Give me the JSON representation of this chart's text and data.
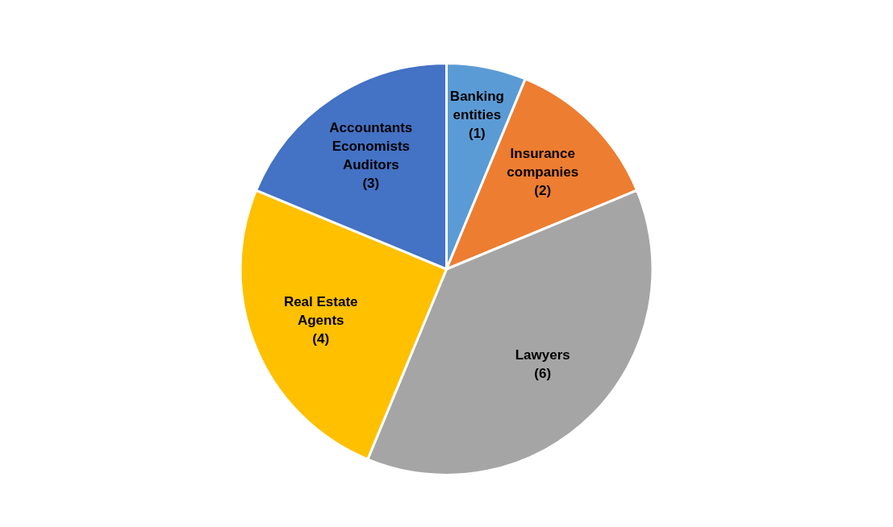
{
  "chart_data": {
    "type": "pie",
    "categories": [
      "Banking entities",
      "Insurance companies",
      "Lawyers",
      "Real Estate Agents",
      "Accountants Economists Auditors"
    ],
    "values": [
      1,
      2,
      6,
      4,
      3
    ],
    "colors": [
      "#5b9bd5",
      "#ed7d31",
      "#a5a5a5",
      "#ffc000",
      "#4472c4"
    ],
    "value_labels": [
      "(1)",
      "(2)",
      "(6)",
      "(4)",
      "(3)"
    ],
    "legend": false
  }
}
